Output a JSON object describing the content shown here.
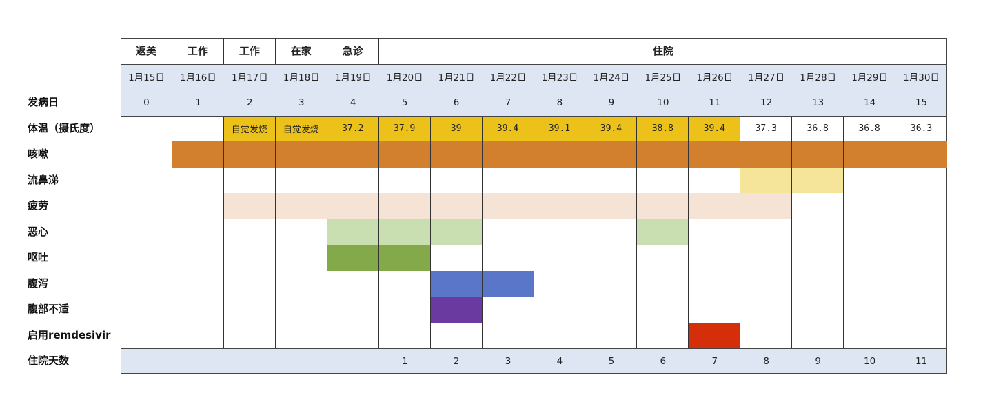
{
  "chart_data": {
    "type": "table",
    "phases": [
      {
        "label": "返美",
        "span": 1
      },
      {
        "label": "工作",
        "span": 1
      },
      {
        "label": "工作",
        "span": 1
      },
      {
        "label": "在家",
        "span": 1
      },
      {
        "label": "急诊",
        "span": 1
      },
      {
        "label": "住院",
        "span": 11
      }
    ],
    "dates": [
      "1月15日",
      "1月16日",
      "1月17日",
      "1月18日",
      "1月19日",
      "1月20日",
      "1月21日",
      "1月22日",
      "1月23日",
      "1月24日",
      "1月25日",
      "1月26日",
      "1月27日",
      "1月28日",
      "1月29日",
      "1月30日"
    ],
    "row_labels": {
      "illness_day": "发病日",
      "temperature": "体温（摄氏度）",
      "hospital_days": "住院天数"
    },
    "illness_day": [
      "0",
      "1",
      "2",
      "3",
      "4",
      "5",
      "6",
      "7",
      "8",
      "9",
      "10",
      "11",
      "12",
      "13",
      "14",
      "15"
    ],
    "temperature": [
      "",
      "",
      "自觉发烧",
      "自觉发烧",
      "37.2",
      "37.9",
      "39",
      "39.4",
      "39.1",
      "39.4",
      "38.8",
      "39.4",
      "37.3",
      "36.8",
      "36.8",
      "36.3"
    ],
    "temperature_fever_color": "#ebc11a",
    "symptoms": [
      {
        "label": "咳嗽",
        "days": [
          1,
          2,
          3,
          4,
          5,
          6,
          7,
          8,
          9,
          10,
          11,
          12,
          13,
          14,
          15
        ],
        "color": "#d27f2e"
      },
      {
        "label": "流鼻涕",
        "days": [
          12,
          13
        ],
        "color": "#f5e59a"
      },
      {
        "label": "疲劳",
        "days": [
          2,
          3,
          4,
          5,
          6,
          7,
          8,
          9,
          10,
          11,
          12
        ],
        "color": "#f5e3d6"
      },
      {
        "label": "恶心",
        "days": [
          4,
          5,
          6,
          10
        ],
        "color": "#cadfb1"
      },
      {
        "label": "呕吐",
        "days": [
          4,
          5
        ],
        "color": "#84a94a"
      },
      {
        "label": "腹泻",
        "days": [
          6,
          7
        ],
        "color": "#5a76c8"
      },
      {
        "label": "腹部不适",
        "days": [
          6
        ],
        "color": "#6a3aa0"
      },
      {
        "label": "启用remdesivir",
        "days": [
          11
        ],
        "color": "#d42f0a"
      }
    ],
    "hospital_days": [
      "",
      "",
      "",
      "",
      "",
      "1",
      "2",
      "3",
      "4",
      "5",
      "6",
      "7",
      "8",
      "9",
      "10",
      "11"
    ]
  }
}
